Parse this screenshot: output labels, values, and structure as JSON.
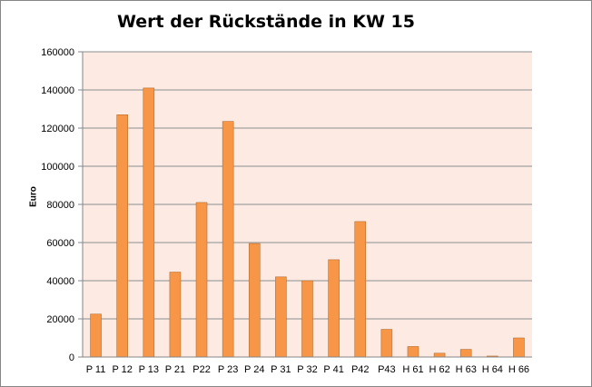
{
  "chart_data": {
    "type": "bar",
    "title": "Wert der Rückstände in KW 15",
    "xlabel": "",
    "ylabel": "Euro",
    "ylim": [
      0,
      160000
    ],
    "yticks": [
      0,
      20000,
      40000,
      60000,
      80000,
      100000,
      120000,
      140000,
      160000
    ],
    "grid": true,
    "legend": "none",
    "categories": [
      "P 11",
      "P 12",
      "P 13",
      "P 21",
      "P22",
      "P 23",
      "P 24",
      "P 31",
      "P 32",
      "P 41",
      "P42",
      "P43",
      "H 61",
      "H 62",
      "H 63",
      "H 64",
      "H 66"
    ],
    "values": [
      22500,
      127000,
      141000,
      44500,
      81000,
      123500,
      59500,
      42000,
      40000,
      51000,
      71000,
      14500,
      5500,
      2000,
      4000,
      500,
      10000
    ],
    "colors": {
      "bar": "#f79646",
      "bar_border": "#b66d31",
      "plot_background": "#fdebe3",
      "gridline": "#8c8c8c"
    }
  }
}
